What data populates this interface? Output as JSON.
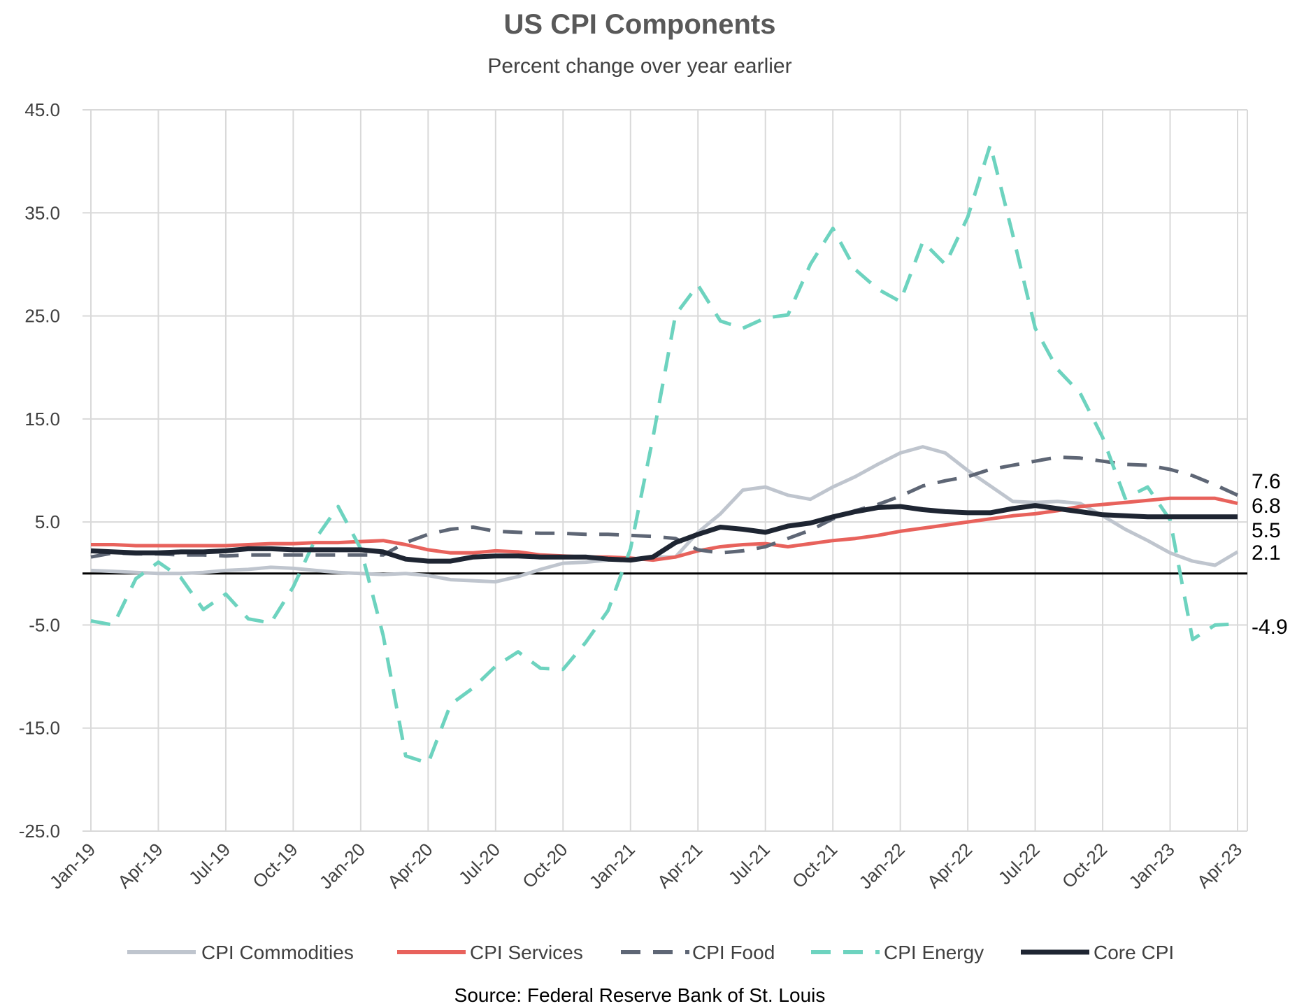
{
  "chart_data": {
    "type": "line",
    "title": "US CPI Components",
    "subtitle": "Percent change over year earlier",
    "source": "Source: Federal Reserve Bank of St. Louis",
    "xlabel": "",
    "ylabel": "",
    "ylim": [
      -25,
      45
    ],
    "y_ticks": [
      "45.0",
      "35.0",
      "25.0",
      "15.0",
      "5.0",
      "-5.0",
      "-15.0",
      "-25.0"
    ],
    "y_tick_values": [
      45,
      35,
      25,
      15,
      5,
      -5,
      -15,
      -25
    ],
    "x_tick_labels": [
      "Jan-19",
      "Apr-19",
      "Jul-19",
      "Oct-19",
      "Jan-20",
      "Apr-20",
      "Jul-20",
      "Oct-20",
      "Jan-21",
      "Apr-21",
      "Jul-21",
      "Oct-21",
      "Jan-22",
      "Apr-22",
      "Jul-22",
      "Oct-22",
      "Jan-23",
      "Apr-23"
    ],
    "x_tick_month_index": [
      0,
      3,
      6,
      9,
      12,
      15,
      18,
      21,
      24,
      27,
      30,
      33,
      36,
      39,
      42,
      45,
      48,
      51
    ],
    "n_months": 52,
    "grid": true,
    "legend_position": "bottom",
    "series": [
      {
        "name": "CPI Commodities",
        "color": "#BFC5CE",
        "dash": "solid",
        "end_label": "2.1",
        "values": [
          0.3,
          0.2,
          0.1,
          0.0,
          0.0,
          0.1,
          0.3,
          0.4,
          0.6,
          0.5,
          0.3,
          0.1,
          0.0,
          -0.1,
          0.0,
          -0.2,
          -0.6,
          -0.7,
          -0.8,
          -0.3,
          0.4,
          1.0,
          1.1,
          1.3,
          1.4,
          1.6,
          1.6,
          4.0,
          5.8,
          8.1,
          8.4,
          7.6,
          7.2,
          8.4,
          9.4,
          10.6,
          11.7,
          12.3,
          11.7,
          10.0,
          8.5,
          7.0,
          6.9,
          7.0,
          6.8,
          5.6,
          4.3,
          3.2,
          2.0,
          1.2,
          0.8,
          2.1
        ]
      },
      {
        "name": "CPI Services",
        "color": "#E8625C",
        "dash": "solid",
        "end_label": "6.8",
        "values": [
          2.8,
          2.8,
          2.7,
          2.7,
          2.7,
          2.7,
          2.7,
          2.8,
          2.9,
          2.9,
          3.0,
          3.0,
          3.1,
          3.2,
          2.8,
          2.3,
          2.0,
          2.0,
          2.2,
          2.1,
          1.8,
          1.7,
          1.6,
          1.6,
          1.5,
          1.3,
          1.6,
          2.2,
          2.6,
          2.8,
          2.9,
          2.6,
          2.9,
          3.2,
          3.4,
          3.7,
          4.1,
          4.4,
          4.7,
          5.0,
          5.3,
          5.6,
          5.8,
          6.1,
          6.5,
          6.7,
          6.9,
          7.1,
          7.3,
          7.3,
          7.3,
          6.8
        ]
      },
      {
        "name": "CPI Food",
        "color": "#5E6675",
        "dash": "dashed",
        "end_label": "7.6",
        "values": [
          1.6,
          2.0,
          1.9,
          1.9,
          1.8,
          1.8,
          1.7,
          1.8,
          1.8,
          1.8,
          1.8,
          1.8,
          1.8,
          1.8,
          3.0,
          3.8,
          4.3,
          4.5,
          4.1,
          4.0,
          3.9,
          3.9,
          3.8,
          3.8,
          3.7,
          3.6,
          3.4,
          2.3,
          2.0,
          2.2,
          2.6,
          3.4,
          4.2,
          5.3,
          6.1,
          6.7,
          7.5,
          8.5,
          9.0,
          9.4,
          10.1,
          10.5,
          10.9,
          11.3,
          11.2,
          10.9,
          10.6,
          10.5,
          10.1,
          9.5,
          8.6,
          7.6
        ]
      },
      {
        "name": "CPI Energy",
        "color": "#6DD3BF",
        "dash": "dashed",
        "end_label": "-4.9",
        "values": [
          -4.6,
          -5.0,
          -0.5,
          1.1,
          -0.4,
          -3.5,
          -2.0,
          -4.4,
          -4.8,
          -1.3,
          3.4,
          6.5,
          2.4,
          -6.0,
          -17.7,
          -18.4,
          -12.7,
          -11.1,
          -9.0,
          -7.6,
          -9.2,
          -9.3,
          -6.7,
          -3.6,
          2.4,
          13.2,
          25.1,
          28.0,
          24.5,
          23.8,
          24.8,
          25.1,
          30.0,
          33.5,
          29.5,
          27.6,
          26.4,
          32.2,
          30.0,
          34.6,
          41.6,
          32.9,
          23.8,
          19.8,
          17.5,
          13.2,
          7.3,
          8.4,
          5.2,
          -6.4,
          -5.0,
          -4.9
        ]
      },
      {
        "name": "Core CPI",
        "color": "#1E2532",
        "dash": "solid",
        "end_label": "5.5",
        "values": [
          2.2,
          2.1,
          2.0,
          2.0,
          2.1,
          2.1,
          2.2,
          2.4,
          2.4,
          2.3,
          2.3,
          2.3,
          2.3,
          2.1,
          1.4,
          1.2,
          1.2,
          1.6,
          1.7,
          1.7,
          1.6,
          1.6,
          1.6,
          1.4,
          1.3,
          1.6,
          3.0,
          3.8,
          4.5,
          4.3,
          4.0,
          4.6,
          4.9,
          5.5,
          6.0,
          6.4,
          6.5,
          6.2,
          6.0,
          5.9,
          5.9,
          6.3,
          6.6,
          6.3,
          6.0,
          5.7,
          5.6,
          5.5,
          5.5,
          5.5,
          5.5,
          5.5
        ]
      }
    ]
  }
}
